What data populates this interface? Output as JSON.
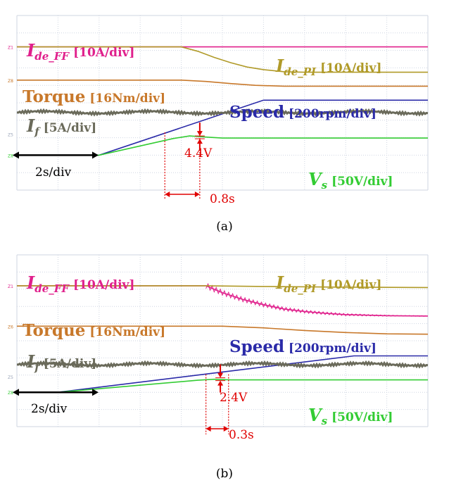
{
  "chart_data": [
    {
      "type": "line",
      "caption": "(a)",
      "time_scale": "2s/div",
      "series": [
        {
          "name": "I_de_FF",
          "sub": "de_FF",
          "scale": "[10A/div]",
          "color": "#e0208c",
          "points": [
            [
              0,
              8.2
            ],
            [
              10,
              8.2
            ]
          ]
        },
        {
          "name": "I_de_PI",
          "sub": "de_PI",
          "scale": "[10A/div]",
          "color": "#b09a28",
          "points": [
            [
              0,
              8.2
            ],
            [
              4.0,
              8.2
            ],
            [
              4.4,
              7.95
            ],
            [
              4.8,
              7.6
            ],
            [
              5.2,
              7.3
            ],
            [
              5.6,
              7.05
            ],
            [
              6.0,
              6.9
            ],
            [
              6.5,
              6.78
            ],
            [
              7.0,
              6.75
            ],
            [
              10,
              6.75
            ]
          ]
        },
        {
          "name": "Torque",
          "scale": "[16Nm/div]",
          "color": "#c8782a",
          "points": [
            [
              0,
              6.3
            ],
            [
              4.0,
              6.3
            ],
            [
              4.6,
              6.22
            ],
            [
              5.2,
              6.1
            ],
            [
              5.8,
              6.0
            ],
            [
              6.5,
              5.95
            ],
            [
              10,
              5.95
            ]
          ]
        },
        {
          "name": "Speed",
          "scale": "[200rpm/div]",
          "color": "#2a2aa8",
          "points": [
            [
              0,
              2.0
            ],
            [
              2.0,
              2.0
            ],
            [
              6.0,
              5.15
            ],
            [
              10,
              5.15
            ]
          ]
        },
        {
          "name": "I_f",
          "sub": "f",
          "scale": "[5A/div]",
          "color": "#6a6a5a",
          "points": [
            [
              0,
              4.45
            ],
            [
              10,
              4.45
            ]
          ]
        },
        {
          "name": "V_s",
          "sub": "s",
          "scale": "[50V/div]",
          "color": "#33cc33",
          "points": [
            [
              0,
              2.0
            ],
            [
              2.0,
              2.0
            ],
            [
              3.8,
              2.95
            ],
            [
              4.2,
              3.1
            ],
            [
              4.7,
              3.02
            ],
            [
              5.0,
              2.98
            ],
            [
              10,
              2.98
            ]
          ]
        }
      ],
      "annotations": {
        "voltage_dip": "4.4V",
        "duration": "0.8s"
      }
    },
    {
      "type": "line",
      "caption": "(b)",
      "time_scale": "2s/div",
      "series": [
        {
          "name": "I_de_FF",
          "sub": "de_FF",
          "scale": "[10A/div]",
          "color": "#e0208c",
          "points": [
            [
              0,
              8.2
            ],
            [
              4.6,
              8.2
            ],
            [
              5.0,
              7.8
            ],
            [
              5.5,
              7.4
            ],
            [
              6.0,
              7.1
            ],
            [
              6.5,
              6.85
            ],
            [
              7.0,
              6.7
            ],
            [
              7.5,
              6.6
            ],
            [
              8.0,
              6.52
            ],
            [
              9.0,
              6.46
            ],
            [
              10,
              6.44
            ]
          ]
        },
        {
          "name": "I_de_PI",
          "sub": "de_PI",
          "scale": "[10A/div]",
          "color": "#b09a28",
          "points": [
            [
              0,
              8.2
            ],
            [
              4.6,
              8.2
            ],
            [
              6.0,
              8.16
            ],
            [
              8.0,
              8.12
            ],
            [
              10,
              8.1
            ]
          ]
        },
        {
          "name": "Torque",
          "scale": "[16Nm/div]",
          "color": "#c8782a",
          "points": [
            [
              0,
              5.85
            ],
            [
              5.0,
              5.85
            ],
            [
              6.0,
              5.75
            ],
            [
              7.0,
              5.6
            ],
            [
              8.0,
              5.48
            ],
            [
              9.0,
              5.4
            ],
            [
              10,
              5.38
            ]
          ]
        },
        {
          "name": "Speed",
          "scale": "[200rpm/div]",
          "color": "#2a2aa8",
          "points": [
            [
              0,
              2.0
            ],
            [
              1.0,
              2.0
            ],
            [
              8.2,
              4.12
            ],
            [
              10,
              4.12
            ]
          ]
        },
        {
          "name": "I_f",
          "sub": "f",
          "scale": "[5A/div]",
          "color": "#6a6a5a",
          "points": [
            [
              0,
              3.62
            ],
            [
              10,
              3.62
            ]
          ]
        },
        {
          "name": "V_s",
          "sub": "s",
          "scale": "[50V/div]",
          "color": "#33cc33",
          "points": [
            [
              0,
              2.0
            ],
            [
              1.0,
              2.0
            ],
            [
              4.4,
              2.7
            ],
            [
              4.8,
              2.76
            ],
            [
              5.2,
              2.72
            ],
            [
              10,
              2.72
            ]
          ]
        }
      ],
      "annotations": {
        "voltage_dip": "2.4V",
        "duration": "0.3s"
      }
    }
  ]
}
